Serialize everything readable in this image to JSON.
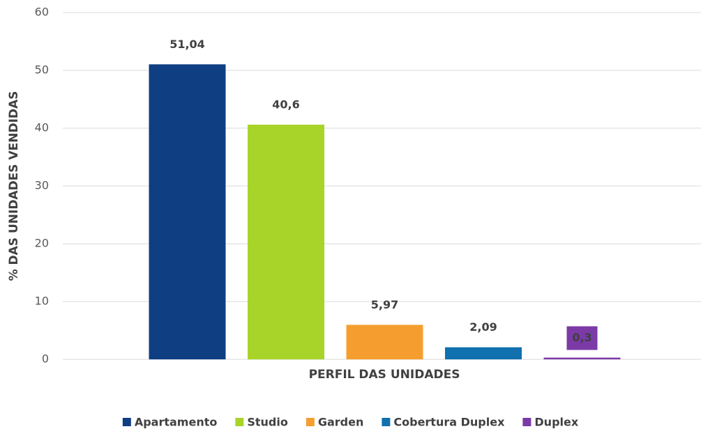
{
  "chart_data": {
    "type": "bar",
    "y_label": "% DAS UNIDADES VENDIDAS",
    "x_label": "PERFIL DAS UNIDADES",
    "series": [
      {
        "name": "Apartamento",
        "color": "#0f3e82",
        "values": [
          51.04
        ],
        "value_labels": [
          "51,04"
        ]
      },
      {
        "name": "Studio",
        "color": "#a8d42a",
        "values": [
          40.6
        ],
        "value_labels": [
          "40,6"
        ]
      },
      {
        "name": "Garden",
        "color": "#f59e2f",
        "values": [
          5.97
        ],
        "value_labels": [
          "5,97"
        ]
      },
      {
        "name": "Cobertura Duplex",
        "color": "#1170ae",
        "values": [
          2.09
        ],
        "value_labels": [
          "2,09"
        ]
      },
      {
        "name": "Duplex",
        "color": "#7b3aa6",
        "values": [
          0.3
        ],
        "value_labels": [
          "0,3"
        ]
      }
    ],
    "ylim": [
      0,
      60
    ],
    "yticks": [
      0,
      10,
      20,
      30,
      40,
      50,
      60
    ],
    "grid": true,
    "legend": "bottom"
  }
}
